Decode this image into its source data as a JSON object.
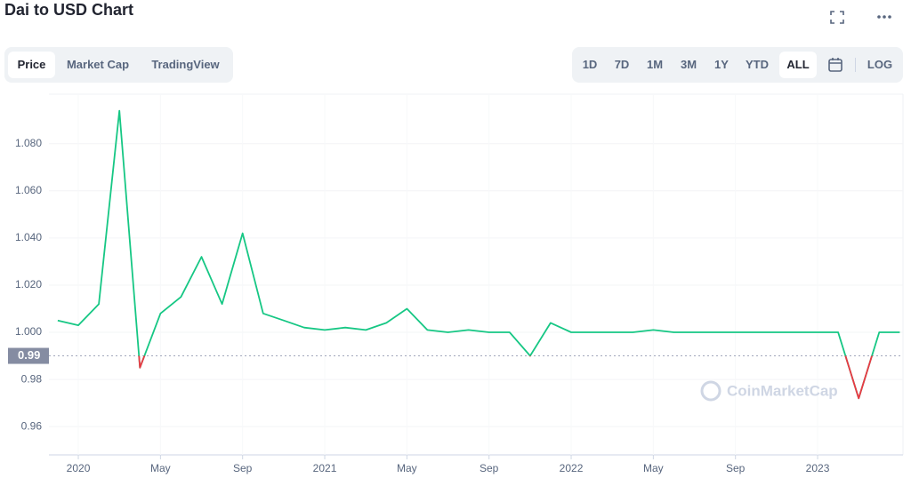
{
  "header": {
    "title": "Dai to USD Chart"
  },
  "tabs": [
    "Price",
    "Market Cap",
    "TradingView"
  ],
  "ranges": [
    "1D",
    "7D",
    "1M",
    "3M",
    "1Y",
    "YTD",
    "ALL"
  ],
  "selected_range": "ALL",
  "scale_toggle": "LOG",
  "chart_data": {
    "type": "line",
    "categories": [
      null,
      "2020",
      null,
      null,
      null,
      "May",
      null,
      null,
      null,
      "Sep",
      null,
      null,
      null,
      "2021",
      null,
      null,
      null,
      "May",
      null,
      null,
      null,
      "Sep",
      null,
      null,
      null,
      "2022",
      null,
      null,
      null,
      "May",
      null,
      null,
      null,
      "Sep",
      null,
      null,
      null,
      "2023",
      null,
      null,
      null,
      null
    ],
    "values": [
      1.005,
      1.003,
      1.012,
      1.094,
      0.985,
      1.008,
      1.015,
      1.032,
      1.012,
      1.042,
      1.008,
      1.005,
      1.002,
      1.001,
      1.002,
      1.001,
      1.004,
      1.01,
      1.001,
      1.0,
      1.001,
      1.0,
      1.0,
      0.99,
      1.004,
      1.0,
      1.0,
      1.0,
      1.0,
      1.001,
      1.0,
      1.0,
      1.0,
      1.0,
      1.0,
      1.0,
      1.0,
      1.0,
      1.0,
      0.972,
      1.0,
      1.0
    ],
    "color": "#16c784",
    "below_color": "#ea3943",
    "baseline": 0.99,
    "ylim": [
      0.948,
      1.101
    ],
    "yticks": [
      0.96,
      0.98,
      {
        "value": 1.0,
        "label": "1.000"
      },
      {
        "value": 1.02,
        "label": "1.020"
      },
      {
        "value": 1.04,
        "label": "1.040"
      },
      {
        "value": 1.06,
        "label": "1.060"
      },
      {
        "value": 1.08,
        "label": "1.080"
      }
    ],
    "grid": true,
    "watermark": "CoinMarketCap"
  }
}
